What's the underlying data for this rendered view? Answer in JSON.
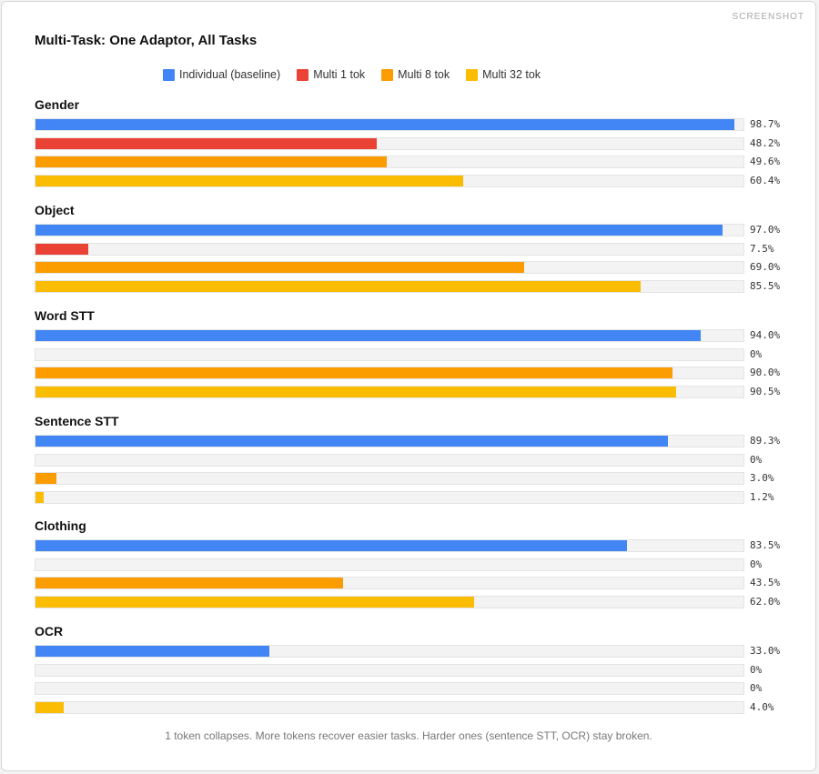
{
  "corner_label": "SCREENSHOT",
  "chart_data": {
    "type": "bar",
    "title": "Multi-Task: One Adaptor, All Tasks",
    "orientation": "horizontal",
    "categories": [
      "Gender",
      "Object",
      "Word STT",
      "Sentence STT",
      "Clothing",
      "OCR"
    ],
    "series": [
      {
        "name": "Individual (baseline)",
        "color": "#4285f4",
        "values": [
          98.7,
          97.0,
          94.0,
          89.3,
          83.5,
          33.0
        ],
        "labels": [
          "98.7%",
          "97.0%",
          "94.0%",
          "89.3%",
          "83.5%",
          "33.0%"
        ]
      },
      {
        "name": "Multi 1 tok",
        "color": "#ea4335",
        "values": [
          48.2,
          7.5,
          0,
          0,
          0,
          0
        ],
        "labels": [
          "48.2%",
          "7.5%",
          "0%",
          "0%",
          "0%",
          "0%"
        ]
      },
      {
        "name": "Multi 8 tok",
        "color": "#fb9c00",
        "values": [
          49.6,
          69.0,
          90.0,
          3.0,
          43.5,
          0
        ],
        "labels": [
          "49.6%",
          "69.0%",
          "90.0%",
          "3.0%",
          "43.5%",
          "0%"
        ]
      },
      {
        "name": "Multi 32 tok",
        "color": "#fbbc04",
        "values": [
          60.4,
          85.5,
          90.5,
          1.2,
          62.0,
          4.0
        ],
        "labels": [
          "60.4%",
          "85.5%",
          "90.5%",
          "1.2%",
          "62.0%",
          "4.0%"
        ]
      }
    ],
    "xlim": [
      0,
      100
    ],
    "legend_position": "top",
    "footnote": "1 token collapses. More tokens recover easier tasks. Harder ones (sentence STT, OCR) stay broken."
  }
}
